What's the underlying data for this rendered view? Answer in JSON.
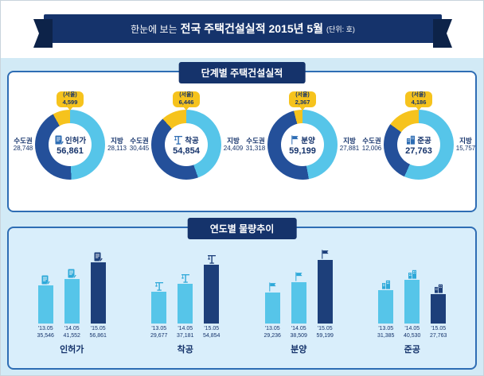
{
  "header": {
    "title_prefix": "한눈에 보는",
    "title_main": "전국 주택건설실적 2015년 5월",
    "title_unit": "(단위: 호)"
  },
  "section1": {
    "title": "단계별 주택건설실적",
    "labels": {
      "capital": "수도권",
      "local": "지방",
      "seoul": "(서울)"
    },
    "donuts": [
      {
        "name": "인허가",
        "total": "56,861",
        "capital": "28,748",
        "local": "28,113",
        "seoul": "4,599"
      },
      {
        "name": "착공",
        "total": "54,854",
        "capital": "30,445",
        "local": "24,409",
        "seoul": "6,446"
      },
      {
        "name": "분양",
        "total": "59,199",
        "capital": "31,318",
        "local": "27,881",
        "seoul": "2,367"
      },
      {
        "name": "준공",
        "total": "27,763",
        "capital": "12,006",
        "local": "15,757",
        "seoul": "4,186"
      }
    ]
  },
  "section2": {
    "title": "연도별 물량추이",
    "groups": [
      {
        "name": "인허가",
        "bars": [
          {
            "year": "'13.05",
            "value": "35,546"
          },
          {
            "year": "'14.05",
            "value": "41,552"
          },
          {
            "year": "'15.05",
            "value": "56,861"
          }
        ]
      },
      {
        "name": "착공",
        "bars": [
          {
            "year": "'13.05",
            "value": "29,677"
          },
          {
            "year": "'14.05",
            "value": "37,181"
          },
          {
            "year": "'15.05",
            "value": "54,854"
          }
        ]
      },
      {
        "name": "분양",
        "bars": [
          {
            "year": "'13.05",
            "value": "29,236"
          },
          {
            "year": "'14.05",
            "value": "38,509"
          },
          {
            "year": "'15.05",
            "value": "59,199"
          }
        ]
      },
      {
        "name": "준공",
        "bars": [
          {
            "year": "'13.05",
            "value": "31,385"
          },
          {
            "year": "'14.05",
            "value": "40,530"
          },
          {
            "year": "'15.05",
            "value": "27,763"
          }
        ]
      }
    ]
  },
  "colors": {
    "navy": "#15336b",
    "donut_dark": "#24509a",
    "dark_bar": "#1d3f7a",
    "mid_blue": "#2e6db4",
    "light_blue": "#56c5e9",
    "yellow": "#f6c31d",
    "page_bg": "#d2eaf6",
    "panel2_bg": "#d9eefb"
  },
  "chart_data": [
    {
      "type": "pie",
      "title": "단계별 주택건설실적 - 인허가",
      "total": 56861,
      "unit": "호",
      "slices": [
        {
          "label": "수도권",
          "value": 28748
        },
        {
          "label": "지방",
          "value": 28113
        },
        {
          "label": "서울(수도권에 포함)",
          "value": 4599
        }
      ]
    },
    {
      "type": "pie",
      "title": "단계별 주택건설실적 - 착공",
      "total": 54854,
      "unit": "호",
      "slices": [
        {
          "label": "수도권",
          "value": 30445
        },
        {
          "label": "지방",
          "value": 24409
        },
        {
          "label": "서울(수도권에 포함)",
          "value": 6446
        }
      ]
    },
    {
      "type": "pie",
      "title": "단계별 주택건설실적 - 분양",
      "total": 59199,
      "unit": "호",
      "slices": [
        {
          "label": "수도권",
          "value": 31318
        },
        {
          "label": "지방",
          "value": 27881
        },
        {
          "label": "서울(수도권에 포함)",
          "value": 2367
        }
      ]
    },
    {
      "type": "pie",
      "title": "단계별 주택건설실적 - 준공",
      "total": 27763,
      "unit": "호",
      "slices": [
        {
          "label": "수도권",
          "value": 12006
        },
        {
          "label": "지방",
          "value": 15757
        },
        {
          "label": "서울(수도권에 포함)",
          "value": 4186
        }
      ]
    },
    {
      "type": "bar",
      "title": "연도별 물량추이 - 인허가",
      "categories": [
        "'13.05",
        "'14.05",
        "'15.05"
      ],
      "values": [
        35546,
        41552,
        56861
      ],
      "unit": "호",
      "ylim": [
        0,
        60000
      ]
    },
    {
      "type": "bar",
      "title": "연도별 물량추이 - 착공",
      "categories": [
        "'13.05",
        "'14.05",
        "'15.05"
      ],
      "values": [
        29677,
        37181,
        54854
      ],
      "unit": "호",
      "ylim": [
        0,
        60000
      ]
    },
    {
      "type": "bar",
      "title": "연도별 물량추이 - 분양",
      "categories": [
        "'13.05",
        "'14.05",
        "'15.05"
      ],
      "values": [
        29236,
        38509,
        59199
      ],
      "unit": "호",
      "ylim": [
        0,
        60000
      ]
    },
    {
      "type": "bar",
      "title": "연도별 물량추이 - 준공",
      "categories": [
        "'13.05",
        "'14.05",
        "'15.05"
      ],
      "values": [
        31385,
        40530,
        27763
      ],
      "unit": "호",
      "ylim": [
        0,
        60000
      ]
    }
  ]
}
